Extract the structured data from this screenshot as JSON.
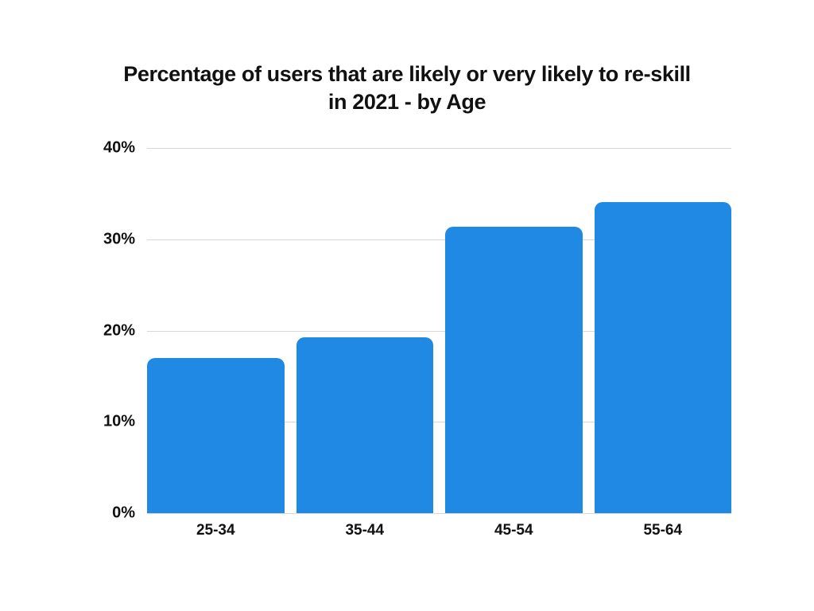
{
  "page": {
    "background_color": "#ffffff",
    "text_color": "#111111"
  },
  "chart_data": {
    "type": "bar",
    "title": "Percentage of users that are likely or very likely to re-skill in 2021 - by Age",
    "title_lines": [
      "Percentage of users that are likely or very likely to re-skill",
      "in 2021 - by Age"
    ],
    "categories": [
      "25-34",
      "35-44",
      "45-54",
      "55-64"
    ],
    "values": [
      17,
      19.3,
      31.4,
      34.1
    ],
    "unit": "%",
    "xlabel": "",
    "ylabel": "",
    "ylim": [
      0,
      40
    ],
    "yticks": [
      0,
      10,
      20,
      30,
      40
    ],
    "ytick_labels": [
      "0%",
      "10%",
      "20%",
      "30%",
      "40%"
    ],
    "grid": "horizontal",
    "legend_position": "none",
    "bar_color": "#2089e4",
    "gridline_color": "#d8d8d8"
  }
}
